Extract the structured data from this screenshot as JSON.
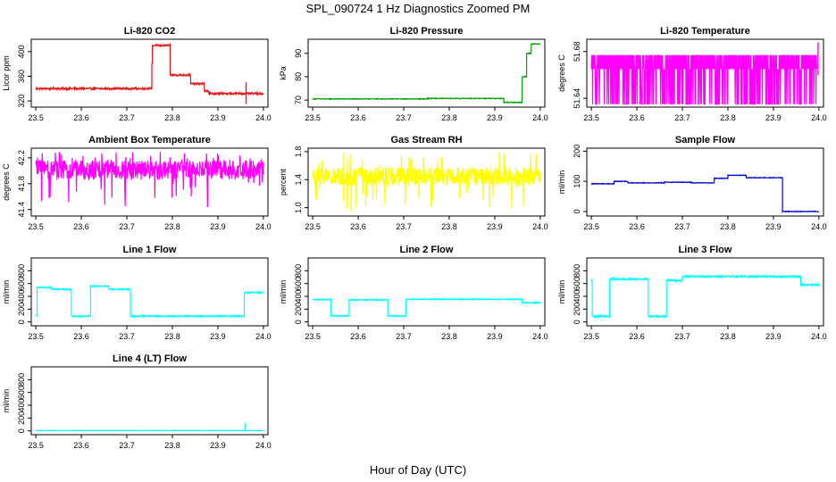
{
  "figure": {
    "title": "SPL_090724  1 Hz Diagnostics Zoomed PM",
    "xlabel": "Hour of Day (UTC)"
  },
  "chart_data": [
    {
      "id": "co2",
      "type": "line",
      "title": "Li-820 CO2",
      "ylabel": "Licor ppm",
      "color": "#e31a1c",
      "noise": 1.5,
      "xlim": [
        23.49,
        24.01
      ],
      "xticks": [
        23.5,
        23.6,
        23.7,
        23.8,
        23.9,
        24.0
      ],
      "ylim": [
        310,
        420
      ],
      "yticks": [
        320,
        360,
        400
      ],
      "segments": [
        [
          23.5,
          23.755,
          340
        ],
        [
          23.755,
          23.756,
          380
        ],
        [
          23.756,
          23.795,
          410
        ],
        [
          23.795,
          23.8,
          362
        ],
        [
          23.8,
          23.84,
          362
        ],
        [
          23.84,
          23.845,
          348
        ],
        [
          23.845,
          23.87,
          348
        ],
        [
          23.87,
          23.88,
          336
        ],
        [
          23.88,
          24.0,
          332
        ]
      ],
      "spikes": [
        [
          23.962,
          315,
          350
        ]
      ]
    },
    {
      "id": "pressure",
      "type": "line",
      "title": "Li-820 Pressure",
      "ylabel": "kPa",
      "color": "#00a000",
      "noise": 0.15,
      "xlim": [
        23.49,
        24.01
      ],
      "xticks": [
        23.5,
        23.6,
        23.7,
        23.8,
        23.9,
        24.0
      ],
      "ylim": [
        67,
        96
      ],
      "yticks": [
        70,
        80,
        90
      ],
      "segments": [
        [
          23.5,
          23.75,
          70.5
        ],
        [
          23.75,
          23.92,
          70.7
        ],
        [
          23.92,
          23.96,
          69
        ],
        [
          23.96,
          23.97,
          80
        ],
        [
          23.97,
          23.98,
          90
        ],
        [
          23.98,
          24.0,
          94
        ]
      ],
      "spikes": []
    },
    {
      "id": "licor-temp",
      "type": "line",
      "title": "Li-820 Temperature",
      "ylabel": "degrees C",
      "color": "#ff00ff",
      "noise": 0.0,
      "xlim": [
        23.49,
        24.01
      ],
      "xticks": [
        23.5,
        23.6,
        23.7,
        23.8,
        23.9,
        24.0
      ],
      "ylim": [
        51.6325,
        51.6905
      ],
      "yticks": [
        51.64,
        51.68
      ],
      "oscillate": [
        51.665,
        51.677,
        51.635
      ],
      "oscillate_range": [
        23.5,
        23.995
      ],
      "spikes": [
        [
          23.998,
          51.66,
          51.688
        ]
      ]
    },
    {
      "id": "box-temp",
      "type": "line",
      "title": "Ambient Box Temperature",
      "ylabel": "degrees C",
      "color": "#ff00ff",
      "noise": 0.0,
      "xlim": [
        23.49,
        24.01
      ],
      "xticks": [
        23.5,
        23.6,
        23.7,
        23.8,
        23.9,
        24.0
      ],
      "ylim": [
        41.3,
        42.35
      ],
      "yticks": [
        41.4,
        41.8,
        42.2
      ],
      "band": [
        41.86,
        42.16,
        41.4,
        42.3
      ],
      "band_range": [
        23.5,
        24.0
      ],
      "spikes": []
    },
    {
      "id": "rh",
      "type": "line",
      "title": "Gas Stream RH",
      "ylabel": "percent",
      "color": "#ffff00",
      "noise": 0.0,
      "xlim": [
        23.49,
        24.01
      ],
      "xticks": [
        23.5,
        23.6,
        23.7,
        23.8,
        23.9,
        24.0
      ],
      "ylim": [
        0.88,
        1.85
      ],
      "yticks": [
        1.0,
        1.4,
        1.8
      ],
      "band": [
        1.32,
        1.58,
        0.95,
        1.8
      ],
      "band_range": [
        23.5,
        24.0
      ],
      "spikes": []
    },
    {
      "id": "sample-flow",
      "type": "line",
      "title": "Sample Flow",
      "ylabel": "ml/min",
      "color": "#0000cd",
      "noise": 1.0,
      "xlim": [
        23.49,
        24.01
      ],
      "xticks": [
        23.5,
        23.6,
        23.7,
        23.8,
        23.9,
        24.0
      ],
      "ylim": [
        -15,
        210
      ],
      "yticks": [
        0,
        100,
        200
      ],
      "segments": [
        [
          23.5,
          23.55,
          92
        ],
        [
          23.55,
          23.58,
          100
        ],
        [
          23.58,
          23.66,
          95
        ],
        [
          23.66,
          23.72,
          97
        ],
        [
          23.72,
          23.77,
          95
        ],
        [
          23.77,
          23.8,
          110
        ],
        [
          23.8,
          23.84,
          120
        ],
        [
          23.84,
          23.92,
          112
        ],
        [
          23.92,
          24.0,
          0
        ]
      ],
      "spikes": []
    },
    {
      "id": "line1-flow",
      "type": "line",
      "title": "Line 1 Flow",
      "ylabel": "ml/min",
      "color": "#00ffff",
      "noise": 10,
      "xlim": [
        23.49,
        24.01
      ],
      "xticks": [
        23.5,
        23.6,
        23.7,
        23.8,
        23.9,
        24.0
      ],
      "ylim": [
        -60,
        1000
      ],
      "yticks": [
        0,
        200,
        400,
        600,
        800
      ],
      "segments": [
        [
          23.5,
          23.503,
          100
        ],
        [
          23.503,
          23.535,
          540
        ],
        [
          23.535,
          23.578,
          510
        ],
        [
          23.578,
          23.62,
          90
        ],
        [
          23.62,
          23.66,
          560
        ],
        [
          23.66,
          23.708,
          510
        ],
        [
          23.708,
          23.958,
          90
        ],
        [
          23.958,
          24.0,
          460
        ]
      ],
      "spikes": []
    },
    {
      "id": "line2-flow",
      "type": "line",
      "title": "Line 2 Flow",
      "ylabel": "ml/min",
      "color": "#00ffff",
      "noise": 8,
      "xlim": [
        23.49,
        24.01
      ],
      "xticks": [
        23.5,
        23.6,
        23.7,
        23.8,
        23.9,
        24.0
      ],
      "ylim": [
        -60,
        1000
      ],
      "yticks": [
        0,
        200,
        400,
        600,
        800
      ],
      "segments": [
        [
          23.5,
          23.54,
          350
        ],
        [
          23.54,
          23.58,
          95
        ],
        [
          23.58,
          23.665,
          345
        ],
        [
          23.665,
          23.705,
          95
        ],
        [
          23.705,
          23.96,
          355
        ],
        [
          23.96,
          24.0,
          300
        ]
      ],
      "spikes": []
    },
    {
      "id": "line3-flow",
      "type": "line",
      "title": "Line 3 Flow",
      "ylabel": "ml/min",
      "color": "#00ffff",
      "noise": 14,
      "xlim": [
        23.49,
        24.01
      ],
      "xticks": [
        23.5,
        23.6,
        23.7,
        23.8,
        23.9,
        24.0
      ],
      "ylim": [
        -60,
        1000
      ],
      "yticks": [
        0,
        200,
        400,
        600,
        800
      ],
      "segments": [
        [
          23.5,
          23.502,
          650
        ],
        [
          23.502,
          23.54,
          90
        ],
        [
          23.54,
          23.625,
          670
        ],
        [
          23.625,
          23.665,
          90
        ],
        [
          23.665,
          23.7,
          650
        ],
        [
          23.7,
          23.96,
          710
        ],
        [
          23.96,
          24.0,
          580
        ]
      ],
      "spikes": []
    },
    {
      "id": "line4-flow",
      "type": "line",
      "title": "Line 4 (LT) Flow",
      "ylabel": "ml/min",
      "color": "#00ffff",
      "noise": 2,
      "xlim": [
        23.49,
        24.01
      ],
      "xticks": [
        23.5,
        23.6,
        23.7,
        23.8,
        23.9,
        24.0
      ],
      "ylim": [
        -60,
        1000
      ],
      "yticks": [
        0,
        200,
        400,
        600,
        800
      ],
      "segments": [
        [
          23.5,
          24.0,
          5
        ]
      ],
      "spikes": [
        [
          23.96,
          5,
          120
        ]
      ]
    }
  ]
}
